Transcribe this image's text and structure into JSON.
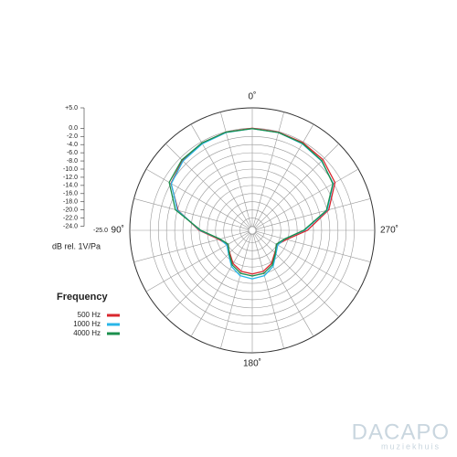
{
  "chart_data": {
    "type": "polar",
    "rlabel": "dB rel. 1V/Pa",
    "legend_title": "Frequency",
    "rlim": [
      -25,
      5
    ],
    "rticks": [
      {
        "value": 5,
        "label": "+5.0"
      },
      {
        "value": 0,
        "label": "0.0"
      },
      {
        "value": -2,
        "label": "-2.0"
      },
      {
        "value": -4,
        "label": "-4.0"
      },
      {
        "value": -6,
        "label": "-6.0"
      },
      {
        "value": -8,
        "label": "-8.0"
      },
      {
        "value": -10,
        "label": "-10.0"
      },
      {
        "value": -12,
        "label": "-12.0"
      },
      {
        "value": -14,
        "label": "-14.0"
      },
      {
        "value": -16,
        "label": "-16.0"
      },
      {
        "value": -18,
        "label": "-18.0"
      },
      {
        "value": -20,
        "label": "-20.0"
      },
      {
        "value": -22,
        "label": "-22.0"
      },
      {
        "value": -24,
        "label": "-24.0"
      },
      {
        "value": -25,
        "label": "-25.0"
      }
    ],
    "angle_ticks": [
      {
        "value": 0,
        "label": "0˚"
      },
      {
        "value": 90,
        "label": "90˚"
      },
      {
        "value": 180,
        "label": "180˚"
      },
      {
        "value": 270,
        "label": "270˚"
      }
    ],
    "angles": [
      0,
      15,
      30,
      45,
      60,
      75,
      90,
      105,
      120,
      135,
      150,
      165,
      180,
      195,
      210,
      225,
      240,
      255,
      270,
      285,
      300,
      315,
      330,
      345
    ],
    "series": [
      {
        "name": "500 Hz",
        "color": "#d9272e",
        "values": [
          0,
          -0.1,
          -0.3,
          -0.8,
          -2,
          -6.2,
          -12,
          -16.5,
          -18,
          -17.2,
          -15.6,
          -14.6,
          -14.3,
          -14.6,
          -15.6,
          -17.2,
          -18,
          -16.3,
          -11.5,
          -5.6,
          -1.6,
          -0.5,
          -0.2,
          -0.1
        ]
      },
      {
        "name": "1000 Hz",
        "color": "#29b6e8",
        "values": [
          -0.1,
          -0.2,
          -0.5,
          -1,
          -2.1,
          -6,
          -12.2,
          -16.8,
          -17.8,
          -16.8,
          -14.8,
          -13.5,
          -13.1,
          -13.5,
          -14.8,
          -16.8,
          -17.8,
          -16.8,
          -12.2,
          -6,
          -2.1,
          -1,
          -0.5,
          -0.2
        ]
      },
      {
        "name": "4000 Hz",
        "color": "#1b8f4c",
        "values": [
          -0.1,
          -0.1,
          -0.3,
          -0.6,
          -1.5,
          -5.5,
          -12.4,
          -16.8,
          -18.2,
          -17,
          -15.2,
          -14.1,
          -13.8,
          -14.1,
          -15.2,
          -17,
          -18.2,
          -16.8,
          -12.4,
          -6.2,
          -2.2,
          -0.9,
          -0.4,
          -0.2
        ]
      }
    ]
  },
  "watermark": {
    "name": "DACAPO",
    "tagline": "muziekhuis"
  }
}
